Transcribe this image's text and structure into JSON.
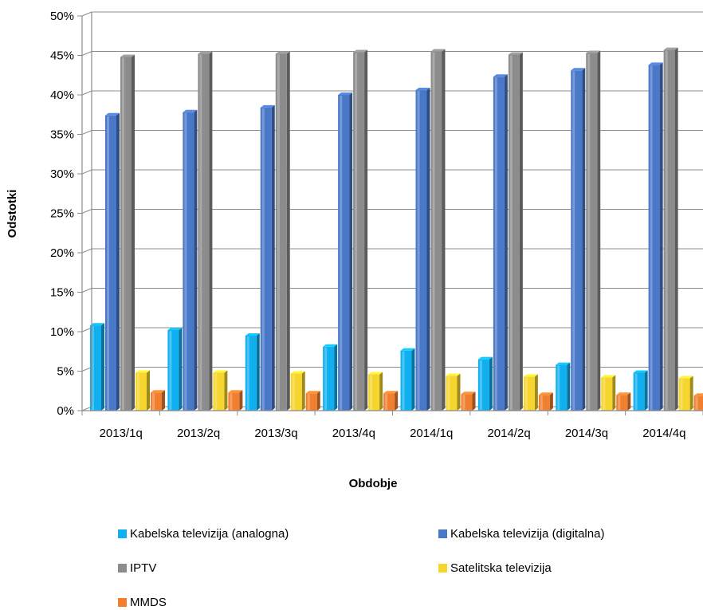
{
  "chart_data": {
    "type": "bar",
    "title": "",
    "xlabel": "Obdobje",
    "ylabel": "Odstotki",
    "ylim": [
      0,
      50
    ],
    "yticks": [
      "0%",
      "5%",
      "10%",
      "15%",
      "20%",
      "25%",
      "30%",
      "35%",
      "40%",
      "45%",
      "50%"
    ],
    "categories": [
      "2013/1q",
      "2013/2q",
      "2013/3q",
      "2013/4q",
      "2014/1q",
      "2014/2q",
      "2014/3q",
      "2014/4q"
    ],
    "series": [
      {
        "name": "Kabelska televizija (analogna)",
        "color": "#10b0f0",
        "values": [
          10.8,
          10.2,
          9.5,
          8.1,
          7.6,
          6.5,
          5.8,
          4.8
        ]
      },
      {
        "name": "Kabelska televizija (digitalna)",
        "color": "#4a78c8",
        "values": [
          37.4,
          37.8,
          38.4,
          40.0,
          40.6,
          42.3,
          43.1,
          43.8
        ]
      },
      {
        "name": "IPTV",
        "color": "#8c8c8c",
        "values": [
          44.8,
          45.2,
          45.2,
          45.4,
          45.5,
          45.1,
          45.3,
          45.7
        ]
      },
      {
        "name": "Satelitska televizija",
        "color": "#f5d52e",
        "values": [
          4.8,
          4.8,
          4.7,
          4.6,
          4.4,
          4.3,
          4.2,
          4.1
        ]
      },
      {
        "name": "MMDS",
        "color": "#f08030",
        "values": [
          2.3,
          2.3,
          2.2,
          2.2,
          2.1,
          2.0,
          2.0,
          1.9
        ]
      }
    ],
    "grid": true,
    "legend_position": "bottom"
  }
}
